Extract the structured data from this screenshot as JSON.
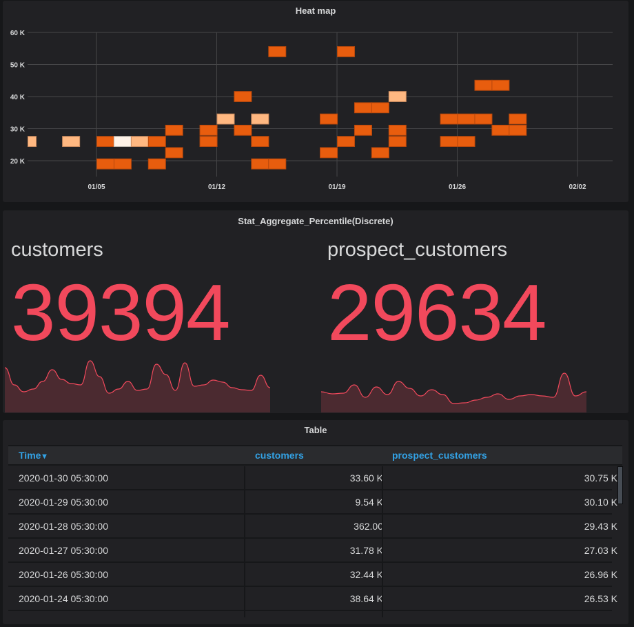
{
  "colors": {
    "background": "#161719",
    "panel": "#212124",
    "heat_high": "#e85d0e",
    "heat_mid": "#ffb881",
    "heat_low": "#fff3e8",
    "stat_value": "#f2495c",
    "sparkline_fill": "#4b2a30",
    "header_link": "#33a2e5"
  },
  "chart_data": [
    {
      "type": "heatmap",
      "title": "Heat map",
      "xlabel": "",
      "ylabel": "",
      "x_ticks": [
        "01/05",
        "01/12",
        "01/19",
        "01/26",
        "02/02"
      ],
      "y_ticks": [
        "20 K",
        "30 K",
        "40 K",
        "50 K",
        "60 K"
      ],
      "ylim": [
        15000,
        60000
      ],
      "x_range_days": [
        "2020-01-01",
        "2020-02-04"
      ],
      "bucket_size": 3400,
      "grid": true,
      "cells": [
        {
          "day": "2020-01-01",
          "y": 26000,
          "level": "mid",
          "partial": true
        },
        {
          "day": "2020-01-03",
          "y": 26000,
          "level": "mid"
        },
        {
          "day": "2020-01-05",
          "y": 26000,
          "level": "high"
        },
        {
          "day": "2020-01-05",
          "y": 19000,
          "level": "high"
        },
        {
          "day": "2020-01-06",
          "y": 26000,
          "level": "low"
        },
        {
          "day": "2020-01-06",
          "y": 19000,
          "level": "high"
        },
        {
          "day": "2020-01-07",
          "y": 26000,
          "level": "mid"
        },
        {
          "day": "2020-01-08",
          "y": 26000,
          "level": "high"
        },
        {
          "day": "2020-01-08",
          "y": 19000,
          "level": "high"
        },
        {
          "day": "2020-01-09",
          "y": 29500,
          "level": "high"
        },
        {
          "day": "2020-01-09",
          "y": 22500,
          "level": "high"
        },
        {
          "day": "2020-01-11",
          "y": 29500,
          "level": "high"
        },
        {
          "day": "2020-01-11",
          "y": 26000,
          "level": "high"
        },
        {
          "day": "2020-01-12",
          "y": 33000,
          "level": "mid"
        },
        {
          "day": "2020-01-13",
          "y": 40000,
          "level": "high"
        },
        {
          "day": "2020-01-13",
          "y": 29500,
          "level": "high"
        },
        {
          "day": "2020-01-14",
          "y": 33000,
          "level": "mid"
        },
        {
          "day": "2020-01-14",
          "y": 26000,
          "level": "high"
        },
        {
          "day": "2020-01-14",
          "y": 19000,
          "level": "high"
        },
        {
          "day": "2020-01-15",
          "y": 54000,
          "level": "high"
        },
        {
          "day": "2020-01-15",
          "y": 19000,
          "level": "high"
        },
        {
          "day": "2020-01-18",
          "y": 33000,
          "level": "high"
        },
        {
          "day": "2020-01-18",
          "y": 22500,
          "level": "high"
        },
        {
          "day": "2020-01-19",
          "y": 54000,
          "level": "high"
        },
        {
          "day": "2020-01-19",
          "y": 26000,
          "level": "high"
        },
        {
          "day": "2020-01-20",
          "y": 36500,
          "level": "high"
        },
        {
          "day": "2020-01-20",
          "y": 29500,
          "level": "high"
        },
        {
          "day": "2020-01-21",
          "y": 36500,
          "level": "high"
        },
        {
          "day": "2020-01-21",
          "y": 22500,
          "level": "high"
        },
        {
          "day": "2020-01-22",
          "y": 40000,
          "level": "mid"
        },
        {
          "day": "2020-01-22",
          "y": 29500,
          "level": "high"
        },
        {
          "day": "2020-01-22",
          "y": 26000,
          "level": "high"
        },
        {
          "day": "2020-01-25",
          "y": 33000,
          "level": "high"
        },
        {
          "day": "2020-01-25",
          "y": 26000,
          "level": "high"
        },
        {
          "day": "2020-01-26",
          "y": 33000,
          "level": "high"
        },
        {
          "day": "2020-01-26",
          "y": 26000,
          "level": "high"
        },
        {
          "day": "2020-01-27",
          "y": 43500,
          "level": "high"
        },
        {
          "day": "2020-01-27",
          "y": 33000,
          "level": "high"
        },
        {
          "day": "2020-01-28",
          "y": 43500,
          "level": "high"
        },
        {
          "day": "2020-01-28",
          "y": 29500,
          "level": "high"
        },
        {
          "day": "2020-01-29",
          "y": 33000,
          "level": "high"
        },
        {
          "day": "2020-01-29",
          "y": 29500,
          "level": "high"
        }
      ]
    },
    {
      "type": "area",
      "title": "customers sparkline",
      "values": [
        65,
        40,
        30,
        34,
        45,
        62,
        48,
        42,
        40,
        75,
        52,
        28,
        34,
        45,
        32,
        34,
        70,
        55,
        32,
        72,
        38,
        40,
        47,
        44,
        36,
        33,
        32,
        54,
        36
      ]
    },
    {
      "type": "area",
      "title": "prospect_customers sparkline",
      "values": [
        30,
        27,
        28,
        40,
        22,
        37,
        26,
        45,
        35,
        24,
        33,
        26,
        13,
        14,
        18,
        22,
        27,
        19,
        24,
        26,
        24,
        22,
        57,
        24,
        30
      ]
    }
  ],
  "heatmap": {
    "title": "Heat map",
    "y_ticks": [
      "60 K",
      "50 K",
      "40 K",
      "30 K",
      "20 K"
    ],
    "x_ticks": [
      "01/05",
      "01/12",
      "01/19",
      "01/26",
      "02/02"
    ]
  },
  "stat": {
    "title": "Stat_Aggregate_Percentile(Discrete)",
    "items": [
      {
        "label": "customers",
        "value": "39394"
      },
      {
        "label": "prospect_customers",
        "value": "29634"
      }
    ]
  },
  "table": {
    "title": "Table",
    "columns": [
      "Time",
      "customers",
      "prospect_customers"
    ],
    "sort_indicator": "▾",
    "rows": [
      [
        "2020-01-30 05:30:00",
        "33.60 K",
        "30.75 K"
      ],
      [
        "2020-01-29 05:30:00",
        "9.54 K",
        "30.10 K"
      ],
      [
        "2020-01-28 05:30:00",
        "362.00",
        "29.43 K"
      ],
      [
        "2020-01-27 05:30:00",
        "31.78 K",
        "27.03 K"
      ],
      [
        "2020-01-26 05:30:00",
        "32.44 K",
        "26.96 K"
      ],
      [
        "2020-01-24 05:30:00",
        "38.64 K",
        "26.53 K"
      ]
    ]
  }
}
